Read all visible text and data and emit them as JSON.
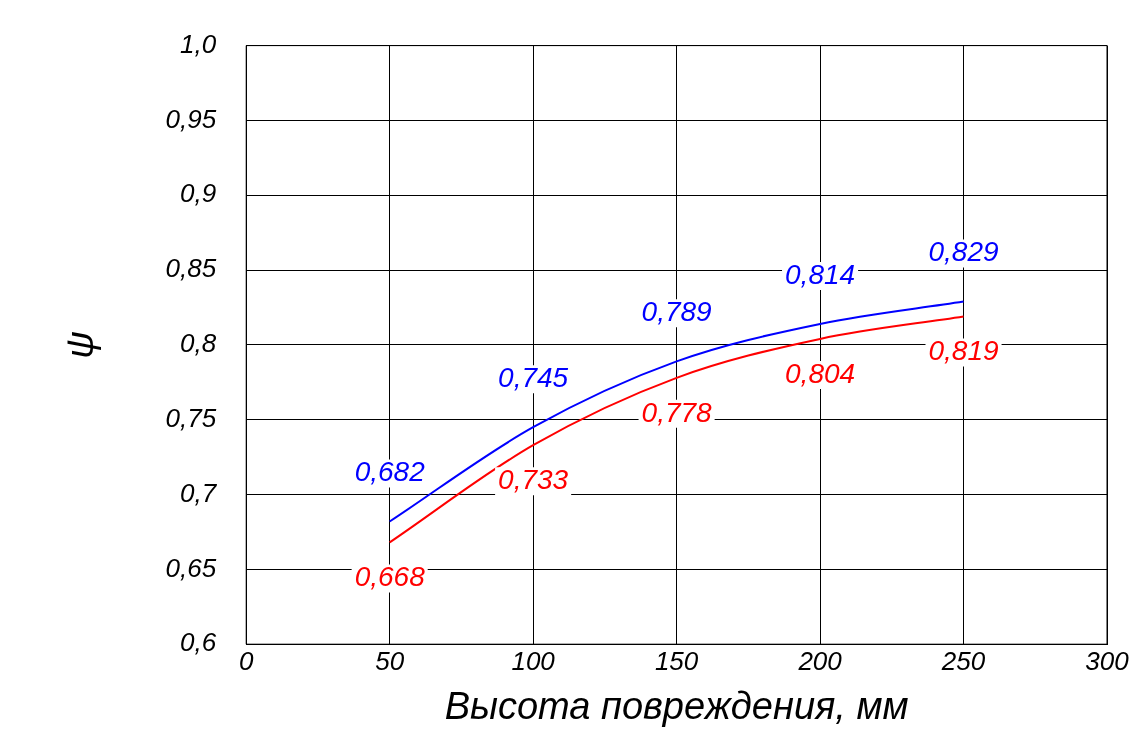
{
  "chart_data": {
    "type": "line",
    "xlabel": "Высота повреждения, мм",
    "ylabel": "ψ",
    "x": [
      50,
      100,
      150,
      200,
      250
    ],
    "series": [
      {
        "color": "#0000ff",
        "values": [
          0.682,
          0.745,
          0.789,
          0.814,
          0.829
        ],
        "value_labels": [
          "0,682",
          "0,745",
          "0,789",
          "0,814",
          "0,829"
        ]
      },
      {
        "color": "#ff0000",
        "values": [
          0.668,
          0.733,
          0.778,
          0.804,
          0.819
        ],
        "value_labels": [
          "0,668",
          "0,733",
          "0,778",
          "0,804",
          "0,819"
        ]
      }
    ],
    "xlim": [
      0,
      300
    ],
    "xticks": [
      0,
      50,
      100,
      150,
      200,
      250,
      300
    ],
    "ylim": [
      0.6,
      1.0
    ],
    "yticks": [
      {
        "value": 0.6,
        "label": "0,6"
      },
      {
        "value": 0.65,
        "label": "0,65"
      },
      {
        "value": 0.7,
        "label": "0,7"
      },
      {
        "value": 0.75,
        "label": "0,75"
      },
      {
        "value": 0.8,
        "label": "0,8"
      },
      {
        "value": 0.85,
        "label": "0,85"
      },
      {
        "value": 0.9,
        "label": "0,9"
      },
      {
        "value": 0.95,
        "label": "0,95"
      },
      {
        "value": 1.0,
        "label": "1,0"
      }
    ],
    "grid": true,
    "legend": false,
    "marker": "none",
    "line_style": "solid"
  }
}
